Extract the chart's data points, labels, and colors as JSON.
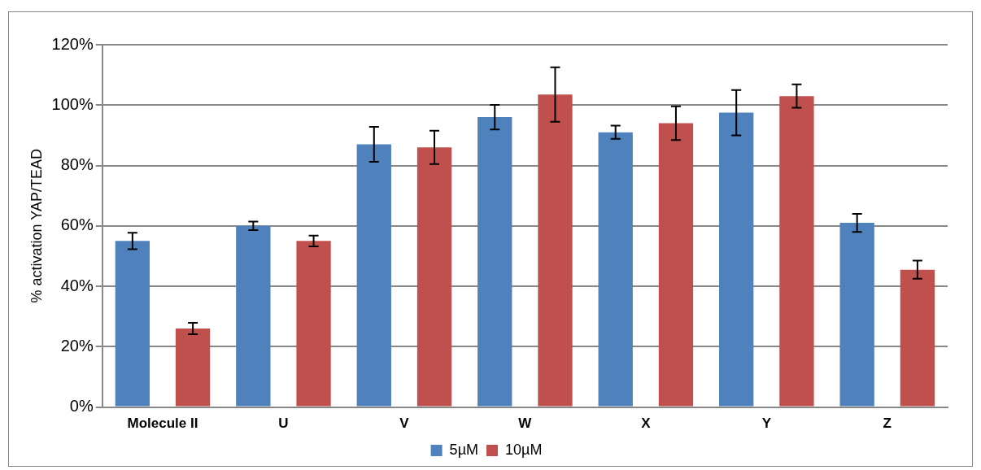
{
  "chart_data": {
    "type": "bar",
    "ylabel": "% activation YAP/TEAD",
    "categories": [
      "Molecule II",
      "U",
      "V",
      "W",
      "X",
      "Y",
      "Z"
    ],
    "series": [
      {
        "name": "5µM",
        "color": "#4f81bd",
        "values": [
          55,
          60,
          87,
          96,
          91,
          97.5,
          61
        ],
        "errors": [
          2.7,
          1.4,
          5.8,
          4.1,
          2.2,
          7.5,
          3
        ]
      },
      {
        "name": "10µM",
        "color": "#c0504d",
        "values": [
          26,
          55,
          86,
          103.5,
          94,
          103,
          45.5
        ],
        "errors": [
          1.9,
          1.8,
          5.5,
          9,
          5.6,
          3.9,
          3
        ]
      }
    ],
    "ylim": [
      0,
      120
    ],
    "yticks": [
      {
        "value": 0,
        "label": "0%"
      },
      {
        "value": 20,
        "label": "20%"
      },
      {
        "value": 40,
        "label": "40%"
      },
      {
        "value": 60,
        "label": "60%"
      },
      {
        "value": 80,
        "label": "80%"
      },
      {
        "value": 100,
        "label": "100%"
      },
      {
        "value": 120,
        "label": "120%"
      }
    ],
    "grid": "y",
    "legend": "bottom"
  }
}
